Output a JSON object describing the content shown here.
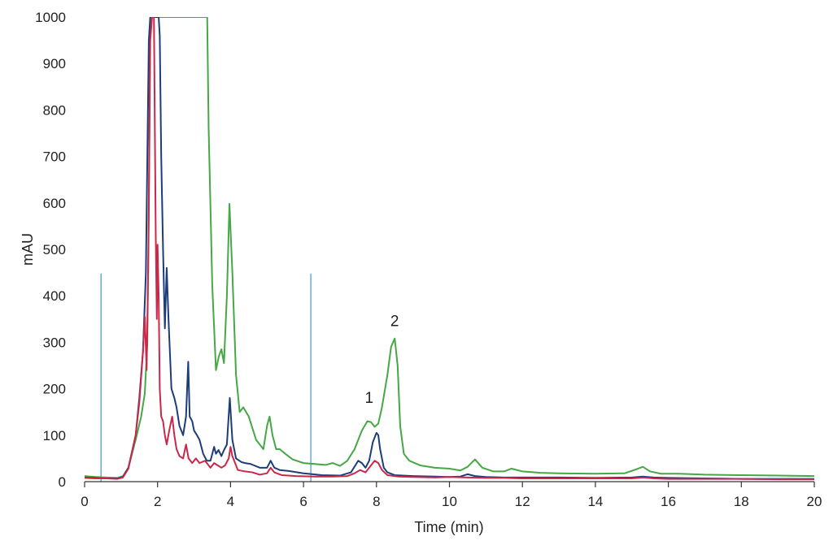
{
  "chart_data": {
    "type": "line",
    "title": "",
    "xlabel": "Time (min)",
    "ylabel": "mAU",
    "xlim": [
      0,
      20
    ],
    "ylim": [
      0,
      1000
    ],
    "x_ticks": [
      0,
      2,
      4,
      6,
      8,
      10,
      12,
      14,
      16,
      18,
      20
    ],
    "y_ticks": [
      0,
      100,
      200,
      300,
      400,
      500,
      600,
      700,
      800,
      900,
      1000
    ],
    "grid": false,
    "legend": "none",
    "annotations": [
      {
        "text": "1",
        "x": 7.8,
        "y": 170
      },
      {
        "text": "2",
        "x": 8.5,
        "y": 335
      }
    ],
    "markers": [
      {
        "x": 0.45,
        "y_top": 448,
        "color": "#4a9fd8"
      },
      {
        "x": 6.2,
        "y_top": 448,
        "color": "#4a9fd8"
      }
    ],
    "series": [
      {
        "color": "#45a845",
        "x": [
          0.0,
          0.3,
          0.6,
          0.9,
          1.05,
          1.2,
          1.4,
          1.55,
          1.65,
          1.72,
          1.76,
          1.8,
          1.85,
          1.9,
          1.95,
          2.0,
          2.2,
          2.5,
          2.8,
          3.0,
          3.2,
          3.33,
          3.36,
          3.4,
          3.5,
          3.6,
          3.68,
          3.75,
          3.82,
          3.9,
          3.97,
          4.05,
          4.15,
          4.25,
          4.35,
          4.5,
          4.7,
          4.9,
          5.0,
          5.07,
          5.15,
          5.25,
          5.35,
          5.5,
          5.7,
          6.0,
          6.3,
          6.6,
          6.8,
          7.0,
          7.2,
          7.4,
          7.6,
          7.75,
          7.85,
          7.95,
          8.05,
          8.15,
          8.3,
          8.4,
          8.5,
          8.58,
          8.65,
          8.75,
          8.9,
          9.2,
          9.6,
          10.0,
          10.3,
          10.5,
          10.7,
          10.9,
          11.2,
          11.5,
          11.7,
          12.0,
          12.5,
          13.0,
          14.0,
          14.8,
          15.1,
          15.3,
          15.5,
          15.8,
          16.3,
          17.0,
          18.0,
          19.0,
          20.0
        ],
        "y": [
          12,
          10,
          9,
          8,
          12,
          30,
          90,
          140,
          190,
          300,
          600,
          1000,
          1000,
          1000,
          1000,
          1000,
          1000,
          1000,
          1000,
          1000,
          1000,
          1000,
          1000,
          760,
          420,
          240,
          270,
          285,
          255,
          400,
          598,
          450,
          230,
          150,
          160,
          140,
          90,
          70,
          120,
          140,
          100,
          70,
          70,
          60,
          48,
          40,
          38,
          36,
          40,
          34,
          45,
          70,
          110,
          130,
          128,
          118,
          125,
          160,
          230,
          290,
          308,
          250,
          120,
          60,
          45,
          35,
          30,
          28,
          24,
          32,
          48,
          30,
          22,
          22,
          28,
          22,
          19,
          18,
          17,
          18,
          26,
          32,
          22,
          17,
          17,
          15,
          14,
          13,
          12
        ]
      },
      {
        "color": "#1d3d7a",
        "x": [
          0.0,
          0.3,
          0.6,
          0.9,
          1.05,
          1.2,
          1.4,
          1.5,
          1.6,
          1.68,
          1.72,
          1.76,
          1.8,
          1.85,
          1.9,
          1.95,
          2.0,
          2.03,
          2.06,
          2.1,
          2.15,
          2.2,
          2.25,
          2.3,
          2.38,
          2.46,
          2.52,
          2.6,
          2.7,
          2.78,
          2.84,
          2.88,
          2.95,
          3.0,
          3.08,
          3.15,
          3.25,
          3.35,
          3.45,
          3.55,
          3.6,
          3.67,
          3.75,
          3.82,
          3.9,
          3.98,
          4.05,
          4.15,
          4.3,
          4.4,
          4.55,
          4.8,
          5.0,
          5.1,
          5.2,
          5.35,
          5.6,
          6.0,
          6.5,
          7.0,
          7.3,
          7.5,
          7.6,
          7.7,
          7.8,
          7.9,
          8.0,
          8.05,
          8.1,
          8.2,
          8.3,
          8.5,
          9.0,
          9.6,
          10.0,
          10.3,
          10.5,
          10.7,
          11.0,
          11.5,
          12.0,
          13.0,
          14.0,
          15.0,
          15.3,
          15.6,
          16.0,
          17.0,
          18.0,
          19.0,
          20.0
        ],
        "y": [
          9,
          8,
          7,
          7,
          10,
          30,
          100,
          180,
          280,
          450,
          700,
          950,
          1000,
          1000,
          1000,
          1000,
          1000,
          1000,
          960,
          700,
          500,
          330,
          460,
          350,
          200,
          180,
          160,
          120,
          100,
          140,
          258,
          140,
          130,
          110,
          100,
          90,
          60,
          45,
          45,
          75,
          60,
          68,
          55,
          68,
          80,
          180,
          90,
          50,
          42,
          40,
          38,
          30,
          30,
          45,
          30,
          25,
          23,
          18,
          14,
          13,
          20,
          45,
          40,
          30,
          45,
          85,
          105,
          100,
          70,
          30,
          20,
          14,
          12,
          11,
          10,
          11,
          16,
          12,
          10,
          9,
          9,
          9,
          8,
          9,
          11,
          9,
          8,
          7,
          6,
          6,
          6
        ]
      },
      {
        "color": "#c9284a",
        "x": [
          0.0,
          0.3,
          0.6,
          0.9,
          1.05,
          1.2,
          1.4,
          1.5,
          1.6,
          1.65,
          1.7,
          1.75,
          1.8,
          1.85,
          1.9,
          1.95,
          1.98,
          2.0,
          2.03,
          2.06,
          2.1,
          2.15,
          2.2,
          2.25,
          2.32,
          2.4,
          2.46,
          2.52,
          2.6,
          2.7,
          2.78,
          2.85,
          2.95,
          3.05,
          3.15,
          3.3,
          3.45,
          3.55,
          3.65,
          3.75,
          3.85,
          3.95,
          4.0,
          4.05,
          4.2,
          4.4,
          4.6,
          4.8,
          5.0,
          5.1,
          5.2,
          5.4,
          5.8,
          6.3,
          6.8,
          7.2,
          7.4,
          7.55,
          7.7,
          7.85,
          7.95,
          8.05,
          8.15,
          8.3,
          8.6,
          9.0,
          9.6,
          10.0,
          10.5,
          11.0,
          11.5,
          12.0,
          13.0,
          14.0,
          15.0,
          15.3,
          15.6,
          16.0,
          17.0,
          18.0,
          19.0,
          20.0
        ],
        "y": [
          8,
          7,
          7,
          6,
          9,
          28,
          100,
          170,
          280,
          355,
          240,
          500,
          950,
          1000,
          1000,
          530,
          350,
          510,
          400,
          200,
          140,
          130,
          100,
          80,
          110,
          140,
          100,
          70,
          55,
          50,
          80,
          50,
          40,
          50,
          40,
          45,
          30,
          40,
          35,
          30,
          35,
          50,
          75,
          55,
          25,
          22,
          20,
          15,
          18,
          30,
          20,
          14,
          12,
          11,
          11,
          12,
          18,
          25,
          20,
          35,
          45,
          40,
          25,
          14,
          11,
          10,
          9,
          10,
          9,
          8,
          8,
          7,
          7,
          7,
          7,
          9,
          7,
          6,
          6,
          6,
          5,
          5
        ]
      }
    ]
  }
}
